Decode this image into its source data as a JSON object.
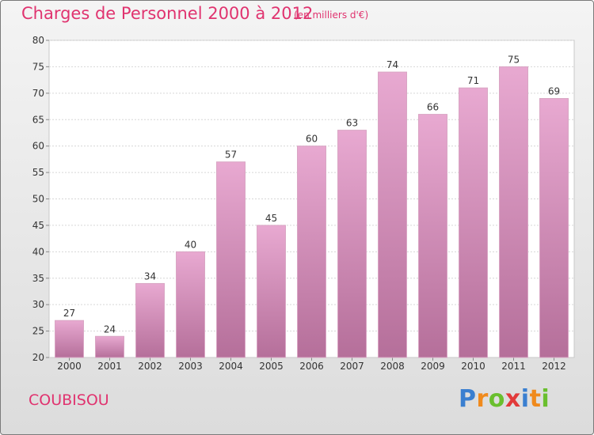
{
  "header": {
    "title": "Charges de Personnel 2000 à 2012",
    "unit": "(en milliers d'€)"
  },
  "footer": {
    "commune": "COUBISOU",
    "logo_text": "Proxiti"
  },
  "colors": {
    "accent": "#e0336f",
    "bar_top": "#e8a9d1",
    "bar_bottom": "#b56f9a"
  },
  "chart_data": {
    "type": "bar",
    "categories": [
      "2000",
      "2001",
      "2002",
      "2003",
      "2004",
      "2005",
      "2006",
      "2007",
      "2008",
      "2009",
      "2010",
      "2011",
      "2012"
    ],
    "values": [
      27,
      24,
      34,
      40,
      57,
      45,
      60,
      63,
      74,
      66,
      71,
      75,
      69
    ],
    "title": "Charges de Personnel 2000 à 2012",
    "ylim": [
      20,
      80
    ],
    "yticks": [
      20,
      25,
      30,
      35,
      40,
      45,
      50,
      55,
      60,
      65,
      70,
      75,
      80
    ],
    "grid": true,
    "legend": "none"
  }
}
